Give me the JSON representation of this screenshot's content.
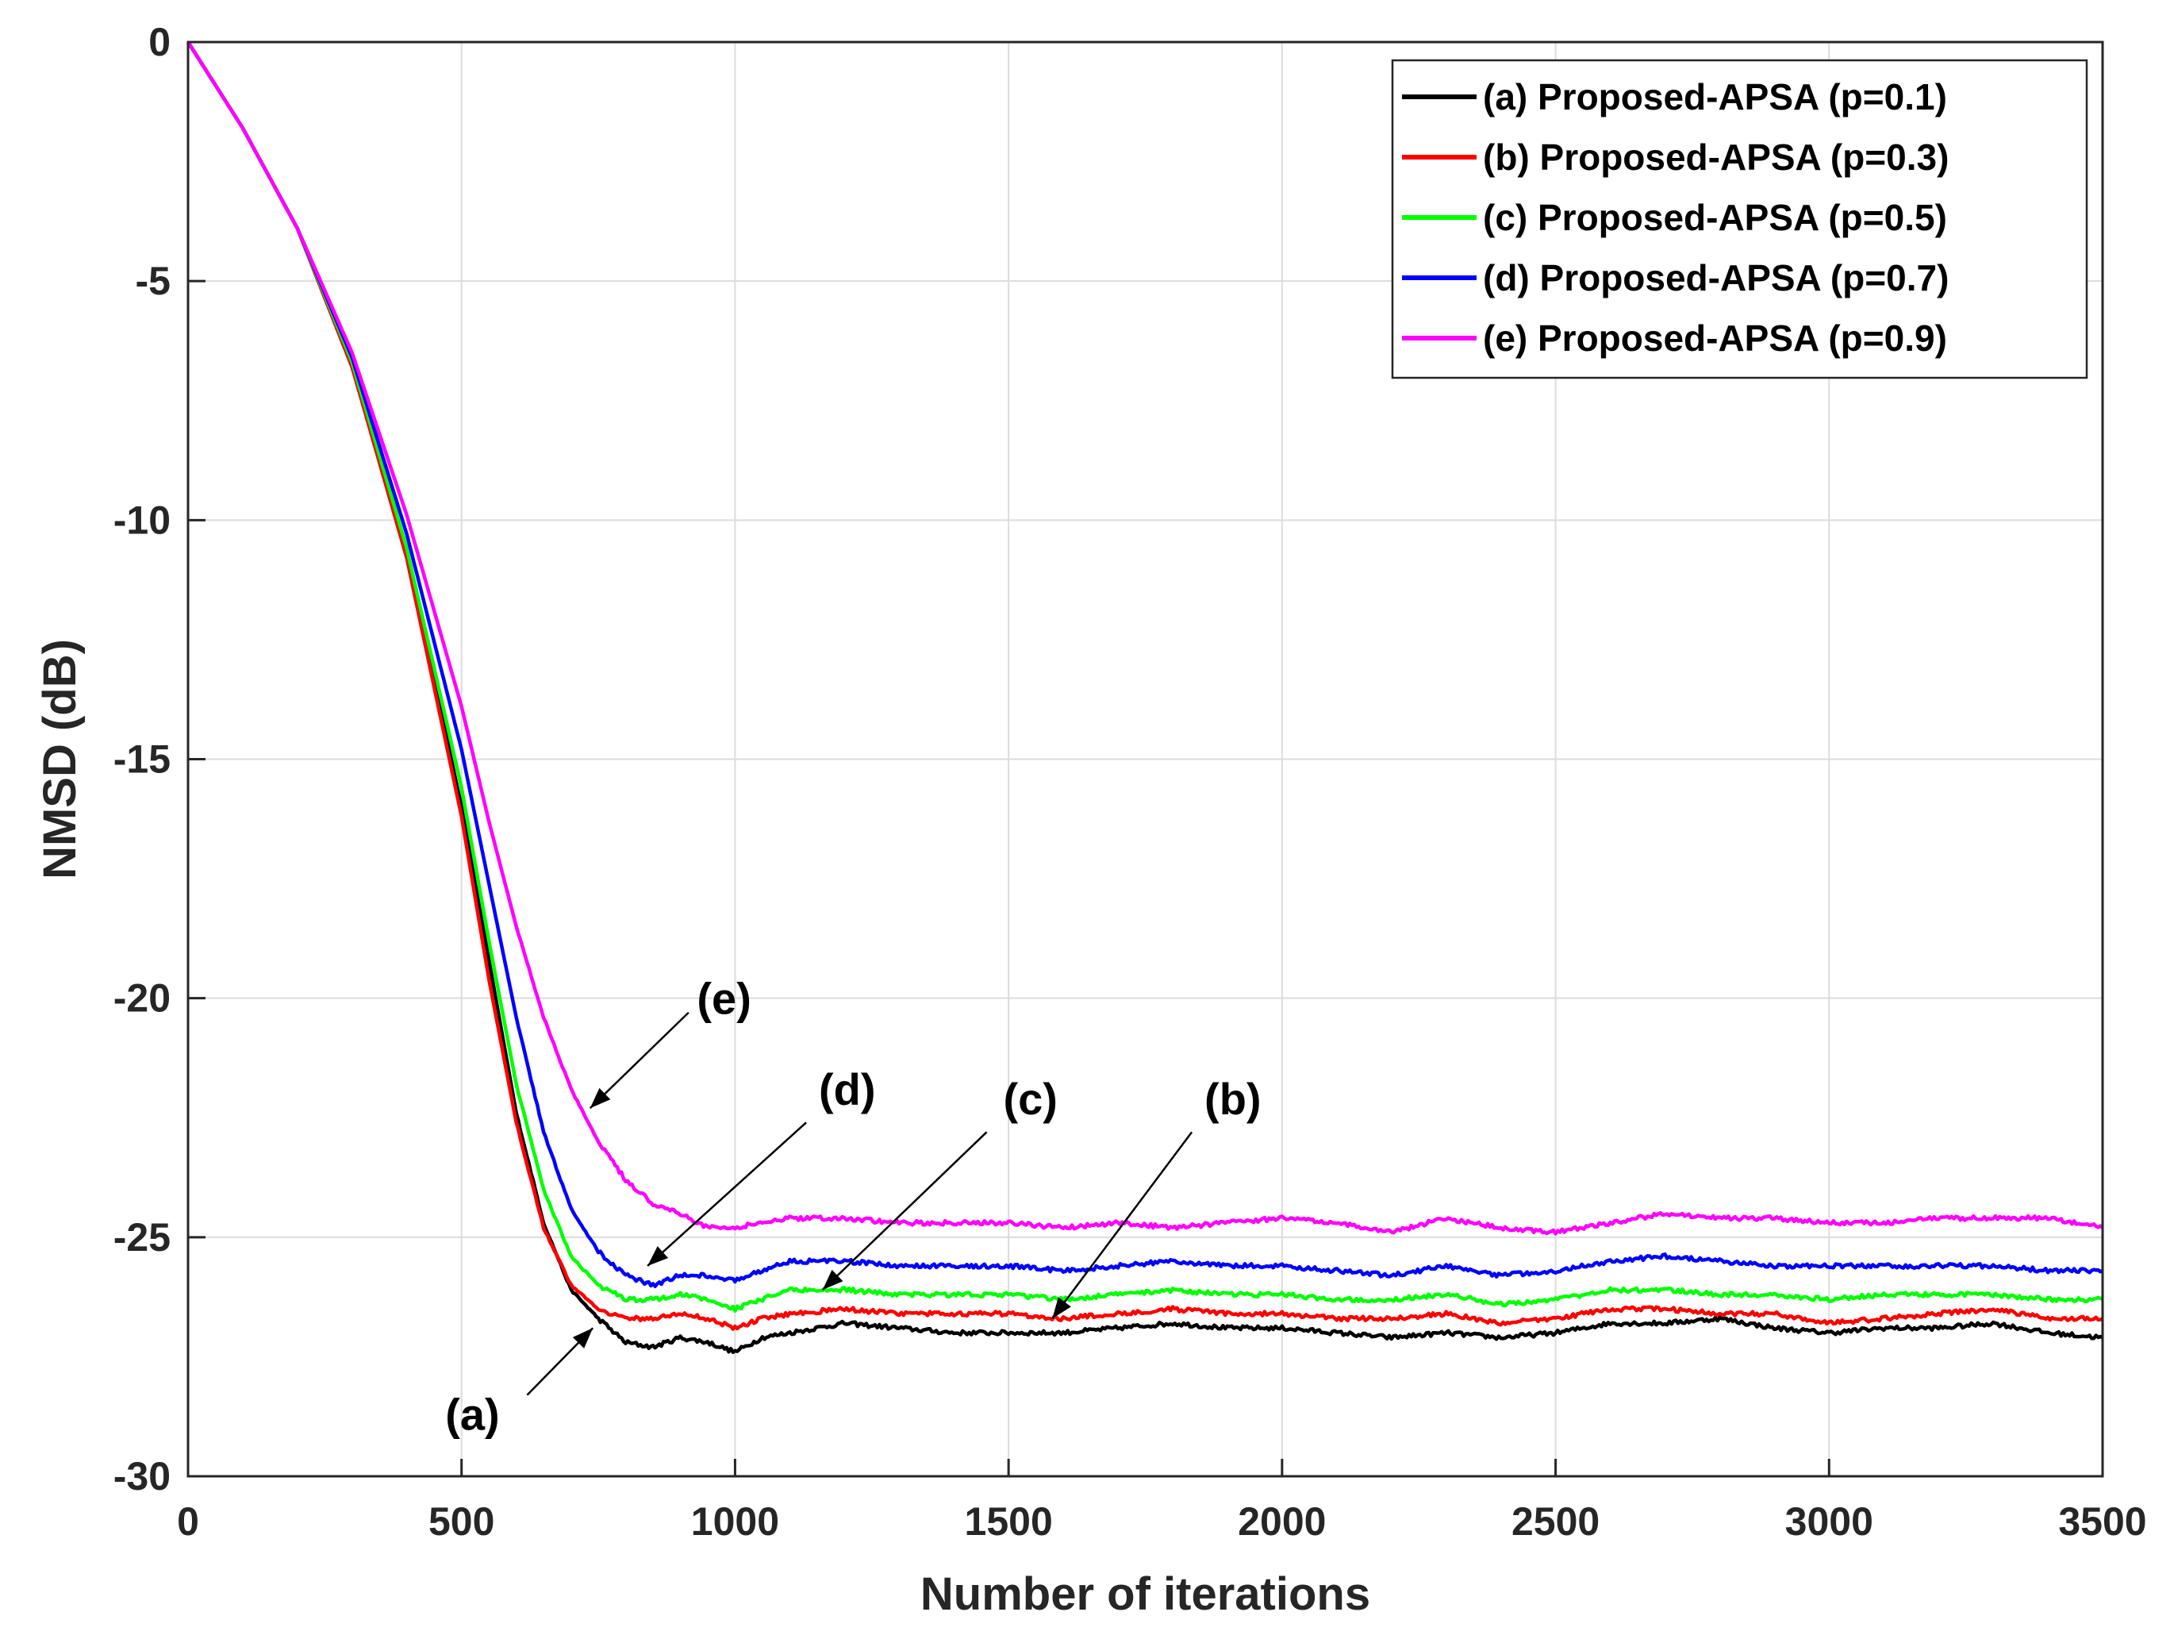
{
  "chart_data": {
    "type": "line",
    "title": "",
    "xlabel": "Number of iterations",
    "ylabel": "NMSD (dB)",
    "xlim": [
      0,
      3500
    ],
    "ylim": [
      -30,
      0
    ],
    "xticks": [
      0,
      500,
      1000,
      1500,
      2000,
      2500,
      3000,
      3500
    ],
    "xtick_labels": [
      "0",
      "500",
      "1000",
      "1500",
      "2000",
      "2500",
      "3000",
      "3500"
    ],
    "yticks": [
      0,
      -5,
      -10,
      -15,
      -20,
      -25,
      -30
    ],
    "ytick_labels": [
      "0",
      "-5",
      "-10",
      "-15",
      "-20",
      "-25",
      "-30"
    ],
    "grid": true,
    "legend_position": "top-right",
    "series": [
      {
        "name": "(a) Proposed-APSA (p=0.1)",
        "color": "#000000",
        "x": [
          0,
          100,
          200,
          300,
          400,
          500,
          550,
          600,
          650,
          700,
          750,
          800,
          850,
          900,
          950,
          1000,
          1050,
          1100,
          1200,
          1300,
          1400,
          1500,
          1600,
          1700,
          1800,
          1900,
          2000,
          2100,
          2200,
          2300,
          2400,
          2500,
          2600,
          2700,
          2800,
          2900,
          3000,
          3100,
          3200,
          3300,
          3400,
          3500
        ],
        "y": [
          0,
          -1.8,
          -3.9,
          -6.8,
          -10.7,
          -16.0,
          -19.2,
          -22.4,
          -24.7,
          -26.1,
          -26.7,
          -27.2,
          -27.3,
          -27.1,
          -27.2,
          -27.4,
          -27.1,
          -27.0,
          -26.8,
          -26.9,
          -27.0,
          -27.0,
          -27.0,
          -26.9,
          -26.8,
          -26.9,
          -26.9,
          -27.0,
          -27.1,
          -27.0,
          -27.1,
          -27.0,
          -26.8,
          -26.8,
          -26.7,
          -26.9,
          -27.0,
          -26.9,
          -26.9,
          -26.8,
          -27.0,
          -27.1
        ]
      },
      {
        "name": "(b) Proposed-APSA (p=0.3)",
        "color": "#ff0000",
        "x": [
          0,
          100,
          200,
          300,
          400,
          500,
          550,
          600,
          650,
          700,
          750,
          800,
          850,
          900,
          950,
          1000,
          1050,
          1100,
          1200,
          1300,
          1400,
          1500,
          1600,
          1700,
          1800,
          1900,
          2000,
          2100,
          2200,
          2300,
          2400,
          2500,
          2600,
          2700,
          2800,
          2900,
          3000,
          3100,
          3200,
          3300,
          3400,
          3500
        ],
        "y": [
          0,
          -1.8,
          -3.9,
          -6.8,
          -10.8,
          -16.2,
          -19.6,
          -22.6,
          -24.8,
          -26.0,
          -26.5,
          -26.7,
          -26.7,
          -26.6,
          -26.7,
          -26.9,
          -26.7,
          -26.6,
          -26.5,
          -26.6,
          -26.6,
          -26.6,
          -26.7,
          -26.6,
          -26.5,
          -26.6,
          -26.6,
          -26.7,
          -26.7,
          -26.6,
          -26.8,
          -26.7,
          -26.5,
          -26.5,
          -26.6,
          -26.6,
          -26.8,
          -26.7,
          -26.6,
          -26.5,
          -26.7,
          -26.7
        ]
      },
      {
        "name": "(c) Proposed-APSA (p=0.5)",
        "color": "#00ff00",
        "x": [
          0,
          100,
          200,
          300,
          400,
          500,
          550,
          600,
          650,
          700,
          750,
          800,
          850,
          900,
          950,
          1000,
          1050,
          1100,
          1200,
          1300,
          1400,
          1500,
          1600,
          1700,
          1800,
          1900,
          2000,
          2100,
          2200,
          2300,
          2400,
          2500,
          2600,
          2700,
          2800,
          2900,
          3000,
          3100,
          3200,
          3300,
          3400,
          3500
        ],
        "y": [
          0,
          -1.8,
          -3.9,
          -6.7,
          -10.6,
          -15.6,
          -18.8,
          -21.8,
          -24.0,
          -25.4,
          -26.0,
          -26.3,
          -26.3,
          -26.2,
          -26.3,
          -26.5,
          -26.3,
          -26.1,
          -26.1,
          -26.2,
          -26.2,
          -26.2,
          -26.3,
          -26.2,
          -26.1,
          -26.2,
          -26.2,
          -26.3,
          -26.3,
          -26.2,
          -26.4,
          -26.3,
          -26.1,
          -26.1,
          -26.2,
          -26.2,
          -26.3,
          -26.2,
          -26.2,
          -26.2,
          -26.3,
          -26.3
        ]
      },
      {
        "name": "(d) Proposed-APSA (p=0.7)",
        "color": "#0000ff",
        "x": [
          0,
          100,
          200,
          300,
          400,
          500,
          550,
          600,
          650,
          700,
          750,
          800,
          850,
          900,
          950,
          1000,
          1050,
          1100,
          1200,
          1300,
          1400,
          1500,
          1600,
          1700,
          1800,
          1900,
          2000,
          2100,
          2200,
          2300,
          2400,
          2500,
          2600,
          2700,
          2800,
          2900,
          3000,
          3100,
          3200,
          3300,
          3400,
          3500
        ],
        "y": [
          0,
          -1.8,
          -3.9,
          -6.6,
          -10.3,
          -14.8,
          -17.6,
          -20.4,
          -22.8,
          -24.4,
          -25.3,
          -25.8,
          -26.0,
          -25.8,
          -25.8,
          -25.9,
          -25.7,
          -25.5,
          -25.5,
          -25.6,
          -25.6,
          -25.6,
          -25.7,
          -25.6,
          -25.5,
          -25.6,
          -25.6,
          -25.7,
          -25.8,
          -25.6,
          -25.8,
          -25.7,
          -25.5,
          -25.4,
          -25.5,
          -25.6,
          -25.6,
          -25.6,
          -25.6,
          -25.6,
          -25.7,
          -25.7
        ]
      },
      {
        "name": "(e) Proposed-APSA (p=0.9)",
        "color": "#ff00ff",
        "x": [
          0,
          100,
          200,
          300,
          400,
          500,
          550,
          600,
          650,
          700,
          750,
          800,
          850,
          900,
          950,
          1000,
          1050,
          1100,
          1200,
          1300,
          1400,
          1500,
          1600,
          1700,
          1800,
          1900,
          2000,
          2100,
          2200,
          2300,
          2400,
          2500,
          2600,
          2700,
          2800,
          2900,
          3000,
          3100,
          3200,
          3300,
          3400,
          3500
        ],
        "y": [
          0,
          -1.8,
          -3.9,
          -6.5,
          -9.9,
          -13.9,
          -16.3,
          -18.5,
          -20.4,
          -21.9,
          -23.0,
          -23.8,
          -24.3,
          -24.5,
          -24.8,
          -24.8,
          -24.7,
          -24.6,
          -24.6,
          -24.7,
          -24.7,
          -24.7,
          -24.8,
          -24.7,
          -24.8,
          -24.7,
          -24.6,
          -24.7,
          -24.9,
          -24.6,
          -24.8,
          -24.9,
          -24.7,
          -24.5,
          -24.6,
          -24.6,
          -24.7,
          -24.7,
          -24.6,
          -24.6,
          -24.6,
          -24.8
        ]
      }
    ],
    "annotations": [
      {
        "label": "(a)",
        "text_x": 520,
        "text_y": -28.7,
        "arrow_from": [
          620,
          -28.3
        ],
        "arrow_to": [
          740,
          -26.9
        ]
      },
      {
        "label": "(b)",
        "text_x": 1910,
        "text_y": -22.1,
        "arrow_from": [
          1835,
          -22.8
        ],
        "arrow_to": [
          1580,
          -26.7
        ]
      },
      {
        "label": "(c)",
        "text_x": 1540,
        "text_y": -22.1,
        "arrow_from": [
          1460,
          -22.8
        ],
        "arrow_to": [
          1160,
          -26.1
        ]
      },
      {
        "label": "(d)",
        "text_x": 1205,
        "text_y": -21.9,
        "arrow_from": [
          1130,
          -22.6
        ],
        "arrow_to": [
          840,
          -25.6
        ]
      },
      {
        "label": "(e)",
        "text_x": 980,
        "text_y": -20.0,
        "arrow_from": [
          915,
          -20.3
        ],
        "arrow_to": [
          735,
          -22.3
        ]
      }
    ]
  }
}
